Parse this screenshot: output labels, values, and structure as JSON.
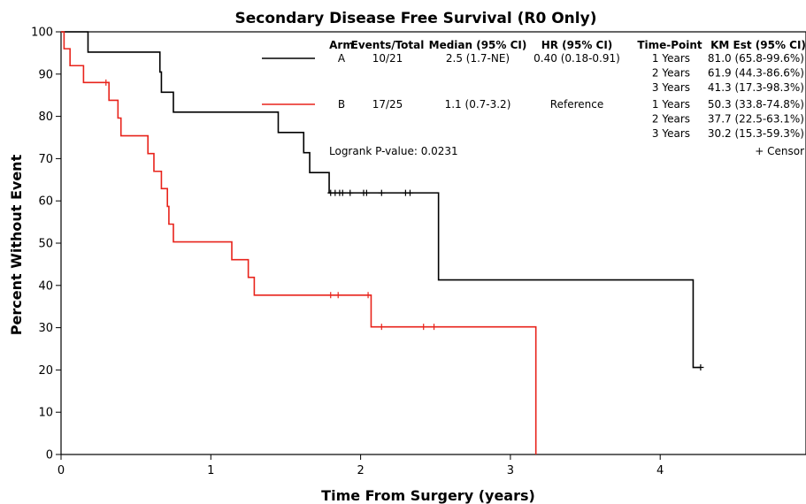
{
  "chart_data": {
    "type": "line",
    "title": "Secondary Disease Free Survival (R0 Only)",
    "xlabel": "Time From Surgery (years)",
    "ylabel": "Percent Without Event",
    "xlim": [
      0,
      5
    ],
    "ylim": [
      0,
      100
    ],
    "xticks": [
      0,
      1,
      2,
      3,
      4
    ],
    "yticks": [
      0,
      10,
      20,
      30,
      40,
      50,
      60,
      70,
      80,
      90,
      100
    ],
    "grid": false,
    "colors": {
      "A": "#000000",
      "B": "#e8231b"
    },
    "series": [
      {
        "name": "A",
        "color": "#000000",
        "steps": [
          [
            0,
            100
          ],
          [
            0.18,
            95.2
          ],
          [
            0.66,
            90.5
          ],
          [
            0.67,
            85.7
          ],
          [
            0.75,
            81.0
          ],
          [
            1.45,
            76.2
          ],
          [
            1.62,
            71.4
          ],
          [
            1.66,
            66.7
          ],
          [
            1.79,
            61.9
          ],
          [
            2.52,
            41.3
          ],
          [
            4.22,
            20.6
          ],
          [
            4.27,
            20.6
          ]
        ],
        "censored": [
          [
            1.8,
            61.9
          ],
          [
            1.83,
            61.9
          ],
          [
            1.86,
            61.9
          ],
          [
            1.88,
            61.9
          ],
          [
            1.93,
            61.9
          ],
          [
            2.02,
            61.9
          ],
          [
            2.04,
            61.9
          ],
          [
            2.14,
            61.9
          ],
          [
            2.3,
            61.9
          ],
          [
            2.33,
            61.9
          ],
          [
            4.27,
            20.6
          ]
        ]
      },
      {
        "name": "B",
        "color": "#e8231b",
        "steps": [
          [
            0,
            100
          ],
          [
            0.02,
            96.0
          ],
          [
            0.06,
            92.0
          ],
          [
            0.15,
            88.0
          ],
          [
            0.32,
            83.8
          ],
          [
            0.38,
            79.6
          ],
          [
            0.4,
            75.4
          ],
          [
            0.58,
            71.2
          ],
          [
            0.62,
            67.0
          ],
          [
            0.67,
            62.9
          ],
          [
            0.71,
            58.7
          ],
          [
            0.72,
            54.5
          ],
          [
            0.75,
            50.3
          ],
          [
            1.14,
            46.1
          ],
          [
            1.25,
            41.9
          ],
          [
            1.29,
            37.7
          ],
          [
            2.07,
            30.2
          ],
          [
            3.17,
            30.2
          ],
          [
            3.17,
            0
          ]
        ],
        "censored": [
          [
            0.3,
            88.0
          ],
          [
            1.8,
            37.7
          ],
          [
            1.85,
            37.7
          ],
          [
            2.05,
            37.7
          ],
          [
            2.14,
            30.2
          ],
          [
            2.42,
            30.2
          ],
          [
            2.49,
            30.2
          ]
        ]
      }
    ],
    "legend_table": {
      "headers": [
        "Arm",
        "Events/Total",
        "Median (95% CI)",
        "HR (95% CI)",
        "Time-Point",
        "KM Est (95% CI)"
      ],
      "rows": [
        {
          "arm": "A",
          "events": "10/21",
          "median": "2.5 (1.7-NE)",
          "hr": "0.40 (0.18-0.91)",
          "timepoints": [
            [
              "1 Years",
              "81.0 (65.8-99.6%)"
            ],
            [
              "2 Years",
              "61.9 (44.3-86.6%)"
            ],
            [
              "3 Years",
              "41.3 (17.3-98.3%)"
            ]
          ]
        },
        {
          "arm": "B",
          "events": "17/25",
          "median": "1.1 (0.7-3.2)",
          "hr": "Reference",
          "timepoints": [
            [
              "1 Years",
              "50.3 (33.8-74.8%)"
            ],
            [
              "2 Years",
              "37.7 (22.5-63.1%)"
            ],
            [
              "3 Years",
              "30.2 (15.3-59.3%)"
            ]
          ]
        }
      ],
      "censor_label": "+ Censor",
      "logrank": "Logrank P-value: 0.0231"
    }
  }
}
